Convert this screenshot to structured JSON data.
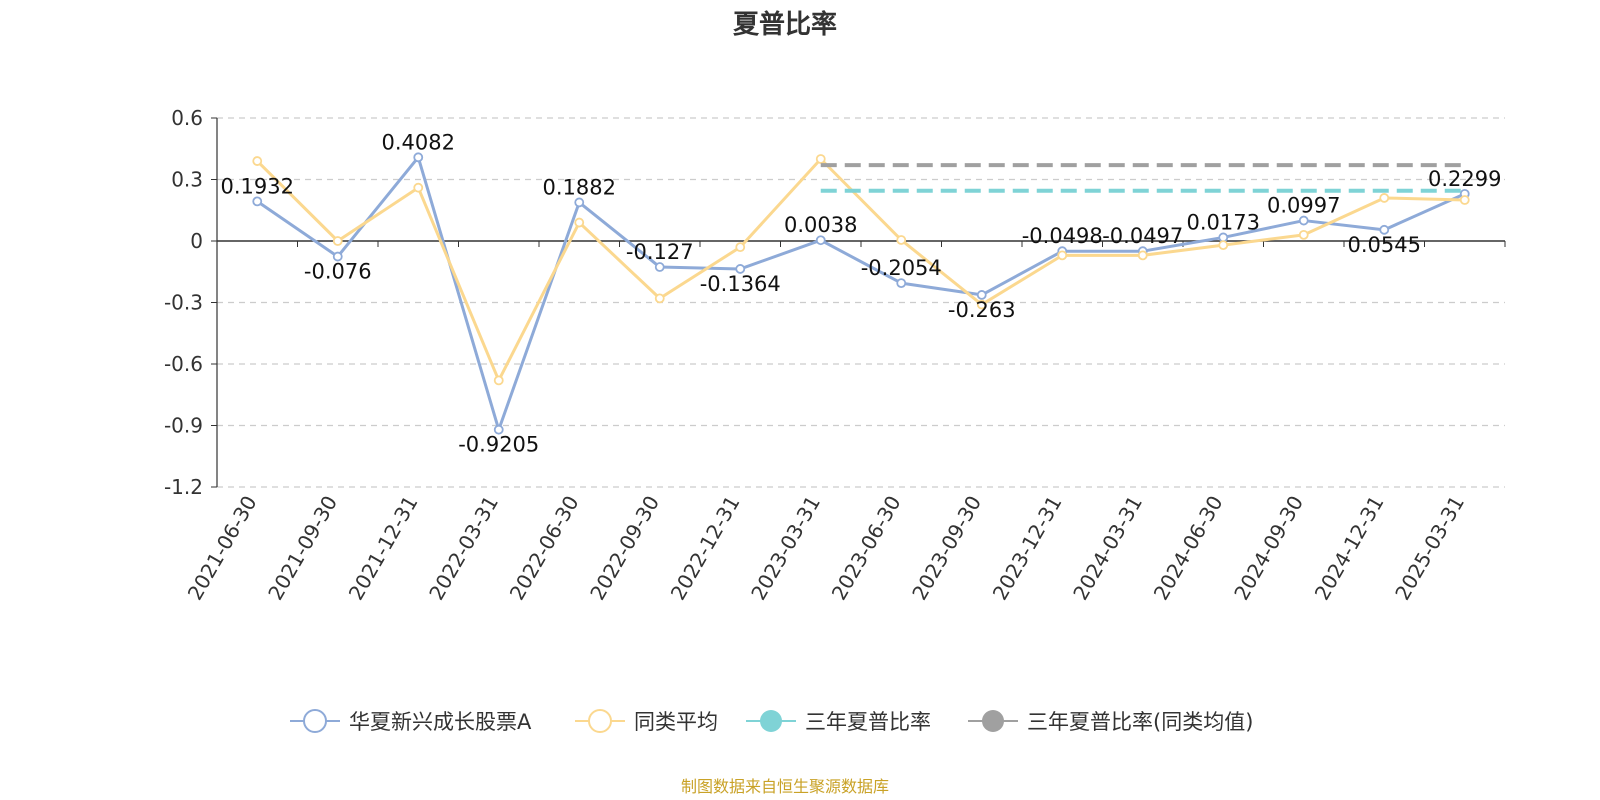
{
  "chart_data": {
    "type": "line",
    "title": "夏普比率",
    "categories": [
      "2021-06-30",
      "2021-09-30",
      "2021-12-31",
      "2022-03-31",
      "2022-06-30",
      "2022-09-30",
      "2022-12-31",
      "2023-03-31",
      "2023-06-30",
      "2023-09-30",
      "2023-12-31",
      "2024-03-31",
      "2024-06-30",
      "2024-09-30",
      "2024-12-31",
      "2025-03-31"
    ],
    "y_ticks": [
      "0.6",
      "0.3",
      "0",
      "-0.3",
      "-0.6",
      "-0.9",
      "-1.2"
    ],
    "ylim": [
      -1.2,
      0.6
    ],
    "grid": true,
    "legend_position": "bottom",
    "series": [
      {
        "name": "华夏新兴成长股票A",
        "color": "#8eaad8",
        "values": [
          0.1932,
          -0.076,
          0.4082,
          -0.9205,
          0.1882,
          -0.127,
          -0.1364,
          0.0038,
          -0.2054,
          -0.263,
          -0.0498,
          -0.0497,
          0.0173,
          0.0997,
          0.0545,
          0.2299
        ],
        "labels": [
          "0.1932",
          "-0.076",
          "0.4082",
          "-0.9205",
          "0.1882",
          "-0.127",
          "-0.1364",
          "0.0038",
          "-0.2054",
          "-0.263",
          "-0.0498",
          "-0.0497",
          "0.0173",
          "0.0997",
          "0.0545",
          "0.2299"
        ]
      },
      {
        "name": "同类平均",
        "color": "#fbd88f",
        "values": [
          0.39,
          0.0,
          0.26,
          -0.68,
          0.09,
          -0.28,
          -0.03,
          0.4,
          0.005,
          -0.31,
          -0.07,
          -0.07,
          -0.02,
          0.03,
          0.21,
          0.2
        ]
      },
      {
        "name": "三年夏普比率",
        "color": "#7fd3d6",
        "dashed": true,
        "from_index": 7,
        "to_index": 15,
        "value": 0.245
      },
      {
        "name": "三年夏普比率(同类均值)",
        "color": "#a0a0a0",
        "dashed": true,
        "from_index": 7,
        "to_index": 15,
        "value": 0.37
      }
    ]
  },
  "source_note": "制图数据来自恒生聚源数据库"
}
